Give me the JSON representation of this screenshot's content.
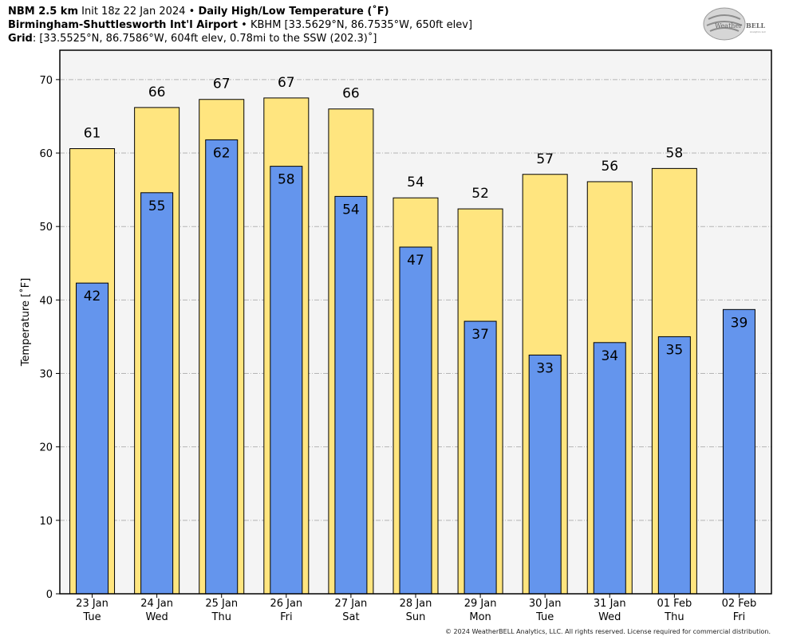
{
  "header": {
    "line1_bold_a": "NBM 2.5 km",
    "line1_plain": "Init 18z 22 Jan 2024",
    "line1_sep": "•",
    "line1_bold_b": "Daily High/Low Temperature (˚F)",
    "line2_bold": "Birmingham-Shuttlesworth Int'l Airport",
    "line2_sep": "•",
    "line2_plain": "KBHM [33.5629°N, 86.7535°W, 650ft elev]",
    "line3_bold": "Grid",
    "line3_plain": ": [33.5525°N, 86.7586°W, 604ft elev, 0.78mi to the SSW (202.3)˚]"
  },
  "logo": {
    "text_a": "Weather",
    "text_b": "BELL",
    "sub": "Analytics LLC"
  },
  "copyright": "© 2024 WeatherBELL Analytics, LLC. All rights reserved. License required for commercial distribution.",
  "colors": {
    "high": "#FFE57F",
    "low": "#6495ED",
    "plot_bg": "#F4F4F4"
  },
  "chart_data": {
    "type": "bar",
    "ylabel": "Temperature [˚F]",
    "ylim": [
      0,
      74
    ],
    "yticks": [
      0,
      10,
      20,
      30,
      40,
      50,
      60,
      70
    ],
    "grid": true,
    "categories": [
      [
        "23 Jan",
        "Tue"
      ],
      [
        "24 Jan",
        "Wed"
      ],
      [
        "25 Jan",
        "Thu"
      ],
      [
        "26 Jan",
        "Fri"
      ],
      [
        "27 Jan",
        "Sat"
      ],
      [
        "28 Jan",
        "Sun"
      ],
      [
        "29 Jan",
        "Mon"
      ],
      [
        "30 Jan",
        "Tue"
      ],
      [
        "31 Jan",
        "Wed"
      ],
      [
        "01 Feb",
        "Thu"
      ],
      [
        "02 Feb",
        "Fri"
      ]
    ],
    "series": [
      {
        "key": "high",
        "values": [
          60.6,
          66.2,
          67.3,
          67.5,
          66.0,
          53.9,
          52.4,
          57.1,
          56.1,
          57.9,
          null
        ],
        "labels": [
          "61",
          "66",
          "67",
          "67",
          "66",
          "54",
          "52",
          "57",
          "56",
          "58",
          ""
        ]
      },
      {
        "key": "low",
        "values": [
          42.3,
          54.6,
          61.8,
          58.2,
          54.1,
          47.2,
          37.1,
          32.5,
          34.2,
          35.0,
          38.7
        ],
        "labels": [
          "42",
          "55",
          "62",
          "58",
          "54",
          "47",
          "37",
          "33",
          "34",
          "35",
          "39"
        ]
      }
    ]
  }
}
